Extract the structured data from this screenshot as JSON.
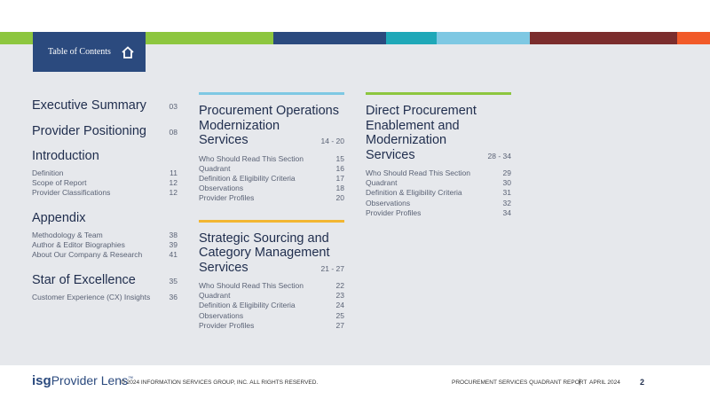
{
  "header": {
    "title": "Table of Contents"
  },
  "columns": [
    [
      {
        "title_lines": [
          "Executive Summary"
        ],
        "page": "03",
        "items": []
      },
      {
        "title_lines": [
          "Provider Positioning"
        ],
        "page": "08",
        "items": []
      },
      {
        "title_lines": [
          "Introduction"
        ],
        "items": [
          {
            "label": "Definition",
            "page": "11"
          },
          {
            "label": "Scope of Report",
            "page": "12"
          },
          {
            "label": "Provider Classifications",
            "page": "12"
          }
        ]
      },
      {
        "title_lines": [
          "Appendix"
        ],
        "items": [
          {
            "label": "Methodology & Team",
            "page": "38"
          },
          {
            "label": "Author & Editor Biographies",
            "page": "39"
          },
          {
            "label": "About Our Company & Research",
            "page": "41"
          }
        ]
      },
      {
        "title_lines": [
          "Star of Excellence"
        ],
        "page": "35",
        "items": [
          {
            "label": "Customer Experience (CX) Insights",
            "page": "36"
          }
        ]
      }
    ],
    [
      {
        "title_lines": [
          "Procurement Operations",
          "Modernization",
          "Services"
        ],
        "page": "14 - 20",
        "bar_color": "#7ec8e3",
        "items": [
          {
            "label": "Who Should Read This Section",
            "page": "15"
          },
          {
            "label": "Quadrant",
            "page": "16"
          },
          {
            "label": "Definition & Eligibility Criteria",
            "page": "17"
          },
          {
            "label": "Observations",
            "page": "18"
          },
          {
            "label": "Provider Profiles",
            "page": "20"
          }
        ]
      },
      {
        "title_lines": [
          "Strategic Sourcing and",
          "Category Management",
          "Services"
        ],
        "page": "21 - 27",
        "bar_color": "#f2b632",
        "items": [
          {
            "label": "Who Should Read This Section",
            "page": "22"
          },
          {
            "label": "Quadrant",
            "page": "23"
          },
          {
            "label": "Definition & Eligibility Criteria",
            "page": "24"
          },
          {
            "label": "Observations",
            "page": "25"
          },
          {
            "label": "Provider Profiles",
            "page": "27"
          }
        ]
      }
    ],
    [
      {
        "title_lines": [
          "Direct Procurement",
          "Enablement and",
          "Modernization",
          "Services"
        ],
        "page": "28 - 34",
        "bar_color": "#8dc63f",
        "items": [
          {
            "label": "Who Should Read This Section",
            "page": "29"
          },
          {
            "label": "Quadrant",
            "page": "30"
          },
          {
            "label": "Definition & Eligibility Criteria",
            "page": "31"
          },
          {
            "label": "Observations",
            "page": "32"
          },
          {
            "label": "Provider Profiles",
            "page": "34"
          }
        ]
      }
    ]
  ],
  "footer": {
    "logo_mark": "isg",
    "logo_text": "Provider Lens",
    "logo_tm": "™",
    "copyright": "© 2024 INFORMATION SERVICES GROUP, INC. ALL RIGHTS RESERVED.",
    "report": "PROCUREMENT SERVICES QUADRANT REPORT",
    "separator": "|",
    "date": "APRIL 2024",
    "page_number": "2"
  }
}
